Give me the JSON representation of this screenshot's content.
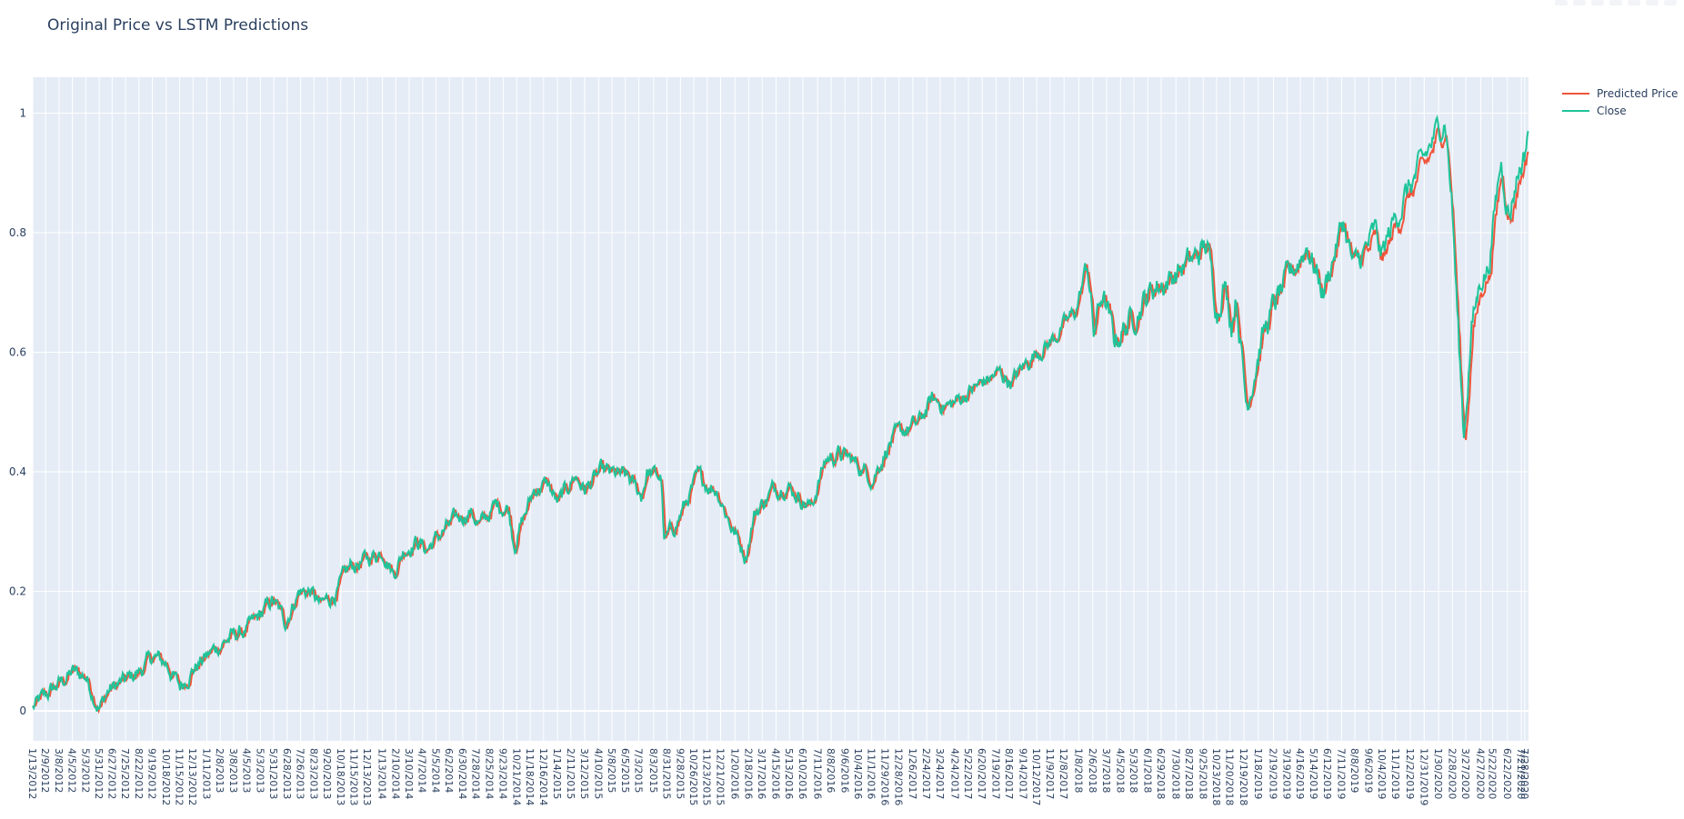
{
  "chart_data": {
    "type": "line",
    "title": "Original Price vs LSTM Predictions",
    "xlabel": "",
    "ylabel": "",
    "ylim": [
      -0.05,
      1.06
    ],
    "y_ticks": [
      "0",
      "0.2",
      "0.4",
      "0.6",
      "0.8",
      "1"
    ],
    "y_tick_values": [
      0,
      0.2,
      0.4,
      0.6,
      0.8,
      1
    ],
    "x_tick_labels": [
      "1/13/2012",
      "2/9/2012",
      "3/8/2012",
      "4/5/2012",
      "5/3/2012",
      "5/31/2012",
      "6/27/2012",
      "7/25/2012",
      "8/22/2012",
      "9/19/2012",
      "10/18/2012",
      "11/15/2012",
      "12/13/2012",
      "1/11/2013",
      "2/8/2013",
      "3/8/2013",
      "4/5/2013",
      "5/3/2013",
      "5/31/2013",
      "6/28/2013",
      "7/26/2013",
      "8/23/2013",
      "9/20/2013",
      "10/18/2013",
      "11/15/2013",
      "12/13/2013",
      "1/13/2014",
      "2/10/2014",
      "3/10/2014",
      "4/7/2014",
      "5/5/2014",
      "6/2/2014",
      "6/30/2014",
      "7/28/2014",
      "8/25/2014",
      "9/23/2014",
      "10/21/2014",
      "11/18/2014",
      "12/16/2014",
      "1/14/2015",
      "2/11/2015",
      "3/12/2015",
      "4/10/2015",
      "5/8/2015",
      "6/5/2015",
      "7/3/2015",
      "8/3/2015",
      "8/31/2015",
      "9/28/2015",
      "10/26/2015",
      "11/23/2015",
      "12/21/2015",
      "1/20/2016",
      "2/18/2016",
      "3/17/2016",
      "4/15/2016",
      "5/13/2016",
      "6/10/2016",
      "7/11/2016",
      "8/8/2016",
      "9/6/2016",
      "10/4/2016",
      "11/1/2016",
      "11/29/2016",
      "12/28/2016",
      "1/26/2017",
      "2/24/2017",
      "3/24/2017",
      "4/24/2017",
      "5/22/2017",
      "6/20/2017",
      "7/19/2017",
      "8/16/2017",
      "9/14/2017",
      "10/12/2017",
      "11/9/2017",
      "12/8/2017",
      "1/8/2018",
      "2/6/2018",
      "3/7/2018",
      "4/5/2018",
      "5/3/2018",
      "6/1/2018",
      "6/29/2018",
      "7/30/2018",
      "8/27/2018",
      "9/25/2018",
      "10/23/2018",
      "11/20/2018",
      "12/19/2018",
      "1/18/2019",
      "2/19/2019",
      "3/19/2019",
      "4/16/2019",
      "5/14/2019",
      "6/12/2019",
      "7/11/2019",
      "8/8/2019",
      "9/6/2019",
      "10/4/2019",
      "11/1/2019",
      "12/2/2019",
      "12/31/2019",
      "1/30/2020",
      "2/28/2020",
      "3/27/2020",
      "4/27/2020",
      "5/22/2020",
      "6/22/2020",
      "7/21/2020",
      "7/28/2020"
    ],
    "x_range": [
      "2012-01-13",
      "2020-08-05"
    ],
    "legend_position": "top-right",
    "grid": true,
    "anchors": [
      [
        "2012-01-13",
        0.005
      ],
      [
        "2012-02-15",
        0.03
      ],
      [
        "2012-03-15",
        0.05
      ],
      [
        "2012-04-05",
        0.065
      ],
      [
        "2012-05-03",
        0.058
      ],
      [
        "2012-05-31",
        0.005
      ],
      [
        "2012-06-20",
        0.035
      ],
      [
        "2012-07-25",
        0.05
      ],
      [
        "2012-08-22",
        0.065
      ],
      [
        "2012-09-19",
        0.09
      ],
      [
        "2012-10-18",
        0.08
      ],
      [
        "2012-11-15",
        0.04
      ],
      [
        "2012-12-13",
        0.07
      ],
      [
        "2013-01-09",
        0.09
      ],
      [
        "2013-02-06",
        0.11
      ],
      [
        "2013-03-06",
        0.125
      ],
      [
        "2013-04-05",
        0.135
      ],
      [
        "2013-05-03",
        0.16
      ],
      [
        "2013-05-28",
        0.185
      ],
      [
        "2013-06-24",
        0.15
      ],
      [
        "2013-07-22",
        0.2
      ],
      [
        "2013-08-16",
        0.2
      ],
      [
        "2013-09-05",
        0.175
      ],
      [
        "2013-10-10",
        0.2
      ],
      [
        "2013-11-06",
        0.24
      ],
      [
        "2013-12-04",
        0.25
      ],
      [
        "2014-01-15",
        0.27
      ],
      [
        "2014-02-05",
        0.23
      ],
      [
        "2014-02-27",
        0.27
      ],
      [
        "2014-03-26",
        0.285
      ],
      [
        "2014-04-15",
        0.27
      ],
      [
        "2014-05-20",
        0.3
      ],
      [
        "2014-06-17",
        0.32
      ],
      [
        "2014-07-15",
        0.335
      ],
      [
        "2014-08-05",
        0.31
      ],
      [
        "2014-09-08",
        0.345
      ],
      [
        "2014-10-03",
        0.34
      ],
      [
        "2014-10-16",
        0.28
      ],
      [
        "2014-11-26",
        0.37
      ],
      [
        "2014-12-24",
        0.38
      ],
      [
        "2015-01-15",
        0.345
      ],
      [
        "2015-02-19",
        0.395
      ],
      [
        "2015-03-12",
        0.37
      ],
      [
        "2015-04-16",
        0.4
      ],
      [
        "2015-05-13",
        0.395
      ],
      [
        "2015-06-10",
        0.39
      ],
      [
        "2015-07-08",
        0.36
      ],
      [
        "2015-07-20",
        0.4
      ],
      [
        "2015-08-19",
        0.39
      ],
      [
        "2015-08-25",
        0.28
      ],
      [
        "2015-09-23",
        0.32
      ],
      [
        "2015-11-03",
        0.39
      ],
      [
        "2015-12-14",
        0.37
      ],
      [
        "2016-01-12",
        0.31
      ],
      [
        "2016-02-11",
        0.26
      ],
      [
        "2016-03-01",
        0.33
      ],
      [
        "2016-04-08",
        0.37
      ],
      [
        "2016-05-05",
        0.38
      ],
      [
        "2016-06-27",
        0.34
      ],
      [
        "2016-07-27",
        0.42
      ],
      [
        "2016-08-23",
        0.43
      ],
      [
        "2016-09-20",
        0.42
      ],
      [
        "2016-11-03",
        0.39
      ],
      [
        "2016-12-09",
        0.45
      ],
      [
        "2017-01-10",
        0.47
      ],
      [
        "2017-02-06",
        0.48
      ],
      [
        "2017-03-06",
        0.52
      ],
      [
        "2017-04-13",
        0.51
      ],
      [
        "2017-05-17",
        0.53
      ],
      [
        "2017-06-22",
        0.55
      ],
      [
        "2017-07-26",
        0.565
      ],
      [
        "2017-08-21",
        0.55
      ],
      [
        "2017-09-13",
        0.575
      ],
      [
        "2017-10-10",
        0.6
      ],
      [
        "2017-11-06",
        0.615
      ],
      [
        "2017-12-04",
        0.64
      ],
      [
        "2018-01-02",
        0.67
      ],
      [
        "2018-01-26",
        0.75
      ],
      [
        "2018-02-08",
        0.63
      ],
      [
        "2018-02-26",
        0.7
      ],
      [
        "2018-03-23",
        0.62
      ],
      [
        "2018-04-23",
        0.65
      ],
      [
        "2018-05-18",
        0.68
      ],
      [
        "2018-06-15",
        0.71
      ],
      [
        "2018-07-13",
        0.72
      ],
      [
        "2018-08-09",
        0.74
      ],
      [
        "2018-09-06",
        0.755
      ],
      [
        "2018-10-03",
        0.78
      ],
      [
        "2018-10-24",
        0.67
      ],
      [
        "2018-11-07",
        0.72
      ],
      [
        "2018-11-23",
        0.65
      ],
      [
        "2018-12-03",
        0.7
      ],
      [
        "2018-12-24",
        0.51
      ],
      [
        "2019-01-24",
        0.62
      ],
      [
        "2019-02-21",
        0.68
      ],
      [
        "2019-03-20",
        0.72
      ],
      [
        "2019-04-16",
        0.76
      ],
      [
        "2019-04-30",
        0.78
      ],
      [
        "2019-06-03",
        0.7
      ],
      [
        "2019-07-15",
        0.82
      ],
      [
        "2019-08-05",
        0.74
      ],
      [
        "2019-08-30",
        0.77
      ],
      [
        "2019-09-19",
        0.8
      ],
      [
        "2019-10-03",
        0.76
      ],
      [
        "2019-10-24",
        0.81
      ],
      [
        "2019-11-20",
        0.86
      ],
      [
        "2019-12-18",
        0.9
      ],
      [
        "2020-01-16",
        0.95
      ],
      [
        "2020-02-13",
        0.995
      ],
      [
        "2020-02-27",
        0.85
      ],
      [
        "2020-03-12",
        0.62
      ],
      [
        "2020-03-23",
        0.46
      ],
      [
        "2020-04-08",
        0.64
      ],
      [
        "2020-04-29",
        0.73
      ],
      [
        "2020-05-13",
        0.74
      ],
      [
        "2020-06-08",
        0.92
      ],
      [
        "2020-06-26",
        0.83
      ],
      [
        "2020-07-13",
        0.9
      ],
      [
        "2020-07-28",
        0.93
      ],
      [
        "2020-08-05",
        0.985
      ]
    ],
    "series": [
      {
        "name": "Predicted Price",
        "color": "#ef553b"
      },
      {
        "name": "Close",
        "color": "#1fc49a"
      }
    ]
  }
}
